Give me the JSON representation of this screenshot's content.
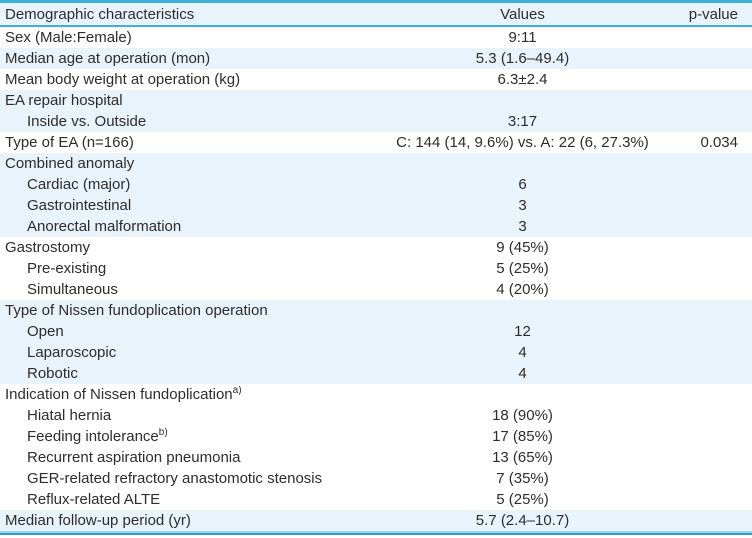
{
  "table": {
    "colors": {
      "accent_border": "#3eb1da",
      "band_background": "#e8f3fb",
      "bottom_border_light": "#9fd5ea",
      "bottom_border_dark": "#2f9fc9",
      "text": "#2d2d2d"
    },
    "columns": {
      "characteristic": "Demographic characteristics",
      "values": "Values",
      "pvalue": "p-value"
    },
    "rows": [
      {
        "label": "Sex (Male:Female)",
        "value": "9:11",
        "pvalue": "",
        "indent": false,
        "band": false
      },
      {
        "label": "Median age at operation (mon)",
        "value": "5.3 (1.6–49.4)",
        "pvalue": "",
        "indent": false,
        "band": true
      },
      {
        "label": "Mean body weight at operation (kg)",
        "value": "6.3±2.4",
        "pvalue": "",
        "indent": false,
        "band": false
      },
      {
        "label": "EA repair hospital",
        "value": "",
        "pvalue": "",
        "indent": false,
        "band": true
      },
      {
        "label": "Inside vs. Outside",
        "value": "3:17",
        "pvalue": "",
        "indent": true,
        "band": true
      },
      {
        "label": "Type of EA (n=166)",
        "value": "C: 144 (14, 9.6%) vs. A: 22 (6, 27.3%)",
        "pvalue": "0.034",
        "indent": false,
        "band": false
      },
      {
        "label": "Combined anomaly",
        "value": "",
        "pvalue": "",
        "indent": false,
        "band": true
      },
      {
        "label": "Cardiac (major)",
        "value": "6",
        "pvalue": "",
        "indent": true,
        "band": true
      },
      {
        "label": "Gastrointestinal",
        "value": "3",
        "pvalue": "",
        "indent": true,
        "band": true
      },
      {
        "label": "Anorectal malformation",
        "value": "3",
        "pvalue": "",
        "indent": true,
        "band": true
      },
      {
        "label": "Gastrostomy",
        "value": "9 (45%)",
        "pvalue": "",
        "indent": false,
        "band": false
      },
      {
        "label": "Pre-existing",
        "value": "5 (25%)",
        "pvalue": "",
        "indent": true,
        "band": false
      },
      {
        "label": "Simultaneous",
        "value": "4 (20%)",
        "pvalue": "",
        "indent": true,
        "band": false
      },
      {
        "label": "Type of Nissen fundoplication operation",
        "value": "",
        "pvalue": "",
        "indent": false,
        "band": true
      },
      {
        "label": "Open",
        "value": "12",
        "pvalue": "",
        "indent": true,
        "band": true
      },
      {
        "label": "Laparoscopic",
        "value": "4",
        "pvalue": "",
        "indent": true,
        "band": true
      },
      {
        "label": "Robotic",
        "value": "4",
        "pvalue": "",
        "indent": true,
        "band": true
      },
      {
        "label": "Indication of Nissen fundoplication",
        "label_sup": "a)",
        "value": "",
        "pvalue": "",
        "indent": false,
        "band": false
      },
      {
        "label": "Hiatal hernia",
        "value": "18 (90%)",
        "pvalue": "",
        "indent": true,
        "band": false
      },
      {
        "label": "Feeding intolerance",
        "label_sup": "b)",
        "value": "17 (85%)",
        "pvalue": "",
        "indent": true,
        "band": false
      },
      {
        "label": "Recurrent aspiration pneumonia",
        "value": "13 (65%)",
        "pvalue": "",
        "indent": true,
        "band": false
      },
      {
        "label": "GER-related refractory anastomotic stenosis",
        "value": "7 (35%)",
        "pvalue": "",
        "indent": true,
        "band": false
      },
      {
        "label": "Reflux-related ALTE",
        "value": "5 (25%)",
        "pvalue": "",
        "indent": true,
        "band": false
      },
      {
        "label": "Median follow-up period (yr)",
        "value": "5.7 (2.4–10.7)",
        "pvalue": "",
        "indent": false,
        "band": true
      }
    ]
  }
}
